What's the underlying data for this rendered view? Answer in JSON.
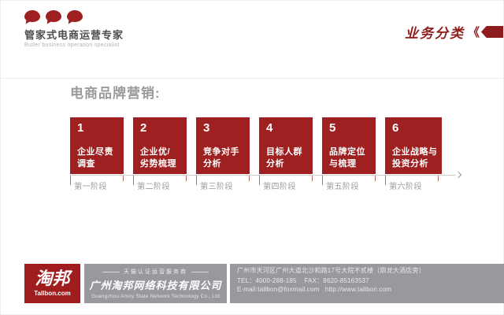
{
  "colors": {
    "accent_red": "#9e2020",
    "dark_red": "#8e1c1c",
    "footer_gray": "#97999e",
    "tick_red": "#b56c6c"
  },
  "icons": {
    "logo_bubbles": "chat-bubble-icon",
    "section_ribbon": "left-pointing-ribbon-icon",
    "timeline_end": "chevron-right-icon"
  },
  "header": {
    "brand_title": "管家式电商运营专家",
    "brand_subtitle": "Butler business operation specialist",
    "section_label": "业务分类",
    "section_mark": "《"
  },
  "main": {
    "heading": "电商品牌营销:",
    "steps": [
      {
        "number": "1",
        "line1": "企业尽责",
        "line2": "调查",
        "stage": "第一阶段"
      },
      {
        "number": "2",
        "line1": "企业优/",
        "line2": "劣势梳理",
        "stage": "第二阶段"
      },
      {
        "number": "3",
        "line1": "竞争对手",
        "line2": "分析",
        "stage": "第三阶段"
      },
      {
        "number": "4",
        "line1": "目标人群",
        "line2": "分析",
        "stage": "第四阶段"
      },
      {
        "number": "5",
        "line1": "品牌定位",
        "line2": "与梳理",
        "stage": "第五阶段"
      },
      {
        "number": "6",
        "line1": "企业战略与",
        "line2": "投资分析",
        "stage": "第六阶段"
      }
    ]
  },
  "footer": {
    "brand_name": "淘邦",
    "brand_domain": "Tallbon.com",
    "tagline": "天猫认证运营服务商",
    "company_cn": "广州淘邦网络科技有限公司",
    "company_en": "Guangzhou Amoy State Network Technology Co., Ltd",
    "address": "广州市天河区广州大道北沙和路17号大院不贰楼（鼎龙大酒店旁）",
    "tel_fax": "TEL：4000-288-185    FAX：8620-85163537",
    "email_web": "E-mail:tallbon@foxmail.com   http://www.tallbon.com"
  }
}
